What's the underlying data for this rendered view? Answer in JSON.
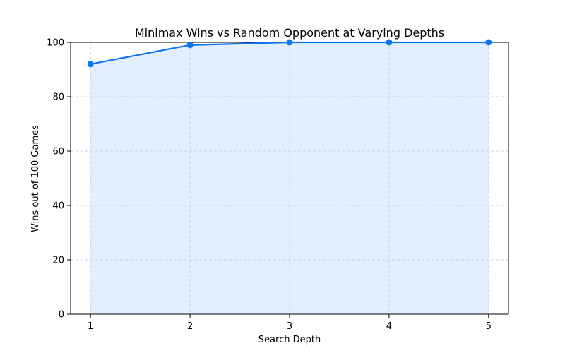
{
  "chart_data": {
    "type": "line",
    "title": "Minimax Wins vs Random Opponent at Varying Depths",
    "xlabel": "Search Depth",
    "ylabel": "Wins out of 100 Games",
    "x": [
      1,
      2,
      3,
      4,
      5
    ],
    "series": [
      {
        "values": [
          92,
          99,
          100,
          100,
          100
        ]
      }
    ],
    "xlim": [
      0.8,
      5.2
    ],
    "ylim": [
      0,
      100
    ],
    "xticks": [
      "1",
      "2",
      "3",
      "4",
      "5"
    ],
    "yticks": [
      "0",
      "20",
      "40",
      "60",
      "80",
      "100"
    ],
    "grid": true,
    "area_fill": true,
    "colors": {
      "line": "#1075ee",
      "fill": "#e3effe",
      "grid": "#c9d3de",
      "axes": "#000000"
    }
  }
}
